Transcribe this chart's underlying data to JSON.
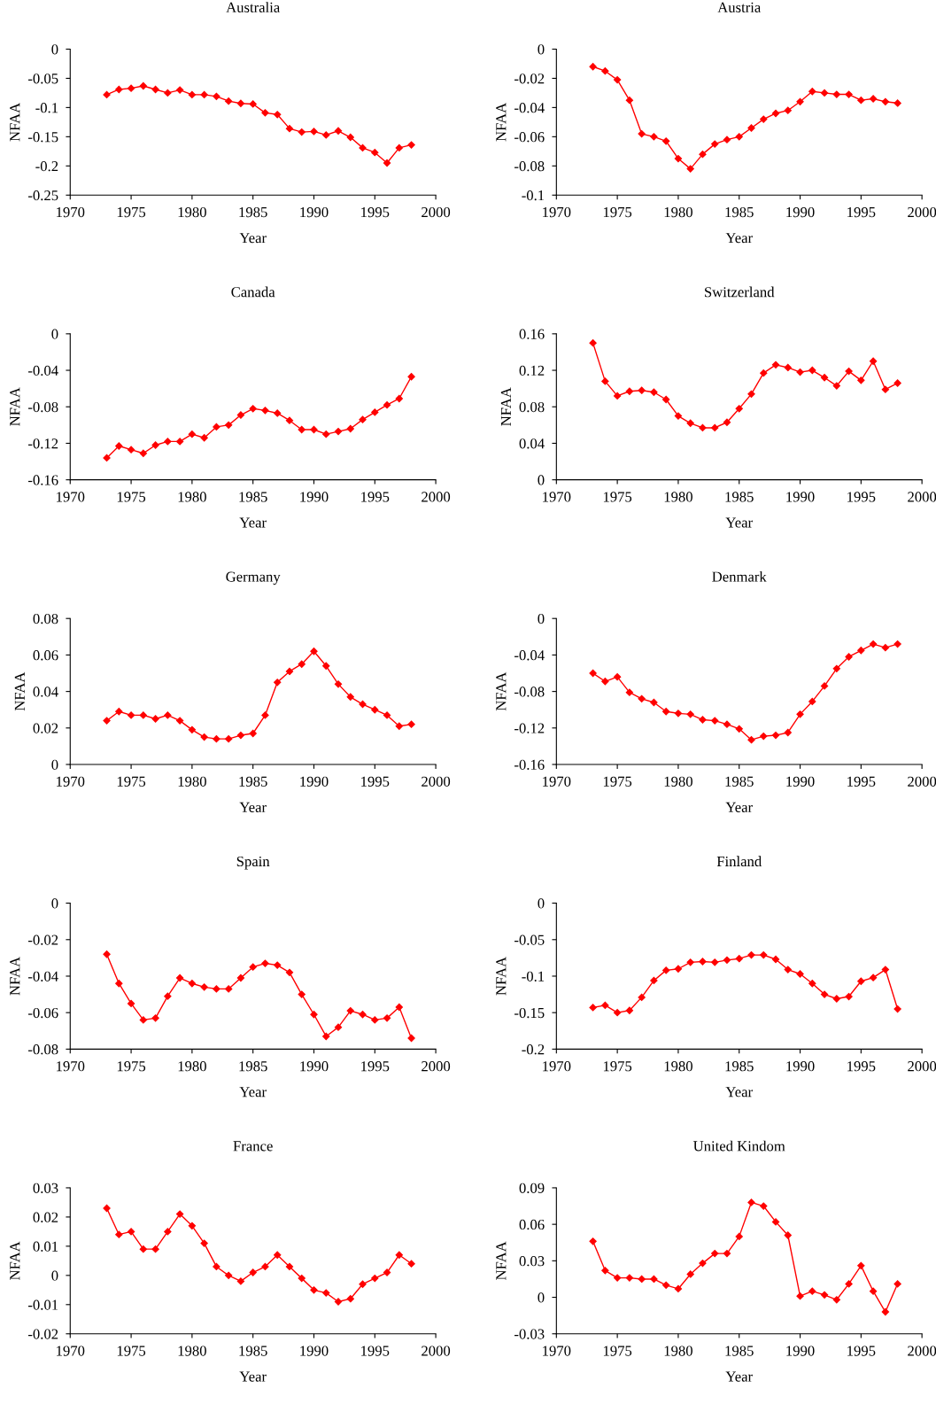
{
  "chart_data": [
    {
      "type": "line",
      "title": "Australia",
      "xlabel": "Year",
      "ylabel": "NFAA",
      "x": [
        1973,
        1974,
        1975,
        1976,
        1977,
        1978,
        1979,
        1980,
        1981,
        1982,
        1983,
        1984,
        1985,
        1986,
        1987,
        1988,
        1989,
        1990,
        1991,
        1992,
        1993,
        1994,
        1995,
        1996,
        1997,
        1998
      ],
      "series": [
        {
          "color": "#ff0000",
          "values": [
            -0.078,
            -0.069,
            -0.067,
            -0.063,
            -0.069,
            -0.075,
            -0.07,
            -0.078,
            -0.078,
            -0.081,
            -0.089,
            -0.093,
            -0.094,
            -0.109,
            -0.112,
            -0.136,
            -0.142,
            -0.141,
            -0.147,
            -0.14,
            -0.151,
            -0.169,
            -0.177,
            -0.195,
            -0.169,
            -0.164
          ]
        }
      ],
      "xlim": [
        1970,
        2000
      ],
      "xticks": [
        1970,
        1975,
        1980,
        1985,
        1990,
        1995,
        2000
      ],
      "ylim": [
        -0.25,
        0
      ],
      "yticks": [
        -0.25,
        -0.2,
        -0.15,
        -0.1,
        -0.05,
        0
      ],
      "marker": "diamond",
      "line_style": "solid"
    },
    {
      "type": "line",
      "title": "Austria",
      "xlabel": "Year",
      "ylabel": "NFAA",
      "x": [
        1973,
        1974,
        1975,
        1976,
        1977,
        1978,
        1979,
        1980,
        1981,
        1982,
        1983,
        1984,
        1985,
        1986,
        1987,
        1988,
        1989,
        1990,
        1991,
        1992,
        1993,
        1994,
        1995,
        1996,
        1997,
        1998
      ],
      "series": [
        {
          "color": "#ff0000",
          "values": [
            -0.012,
            -0.015,
            -0.021,
            -0.035,
            -0.058,
            -0.06,
            -0.063,
            -0.075,
            -0.082,
            -0.072,
            -0.065,
            -0.062,
            -0.06,
            -0.054,
            -0.048,
            -0.044,
            -0.042,
            -0.036,
            -0.029,
            -0.03,
            -0.031,
            -0.031,
            -0.035,
            -0.034,
            -0.036,
            -0.037
          ]
        }
      ],
      "xlim": [
        1970,
        2000
      ],
      "xticks": [
        1970,
        1975,
        1980,
        1985,
        1990,
        1995,
        2000
      ],
      "ylim": [
        -0.1,
        0
      ],
      "yticks": [
        -0.1,
        -0.08,
        -0.06,
        -0.04,
        -0.02,
        0
      ],
      "marker": "diamond",
      "line_style": "solid"
    },
    {
      "type": "line",
      "title": "Canada",
      "xlabel": "Year",
      "ylabel": "NFAA",
      "x": [
        1973,
        1974,
        1975,
        1976,
        1977,
        1978,
        1979,
        1980,
        1981,
        1982,
        1983,
        1984,
        1985,
        1986,
        1987,
        1988,
        1989,
        1990,
        1991,
        1992,
        1993,
        1994,
        1995,
        1996,
        1997,
        1998
      ],
      "series": [
        {
          "color": "#ff0000",
          "values": [
            -0.136,
            -0.123,
            -0.127,
            -0.131,
            -0.122,
            -0.118,
            -0.118,
            -0.11,
            -0.114,
            -0.102,
            -0.1,
            -0.089,
            -0.082,
            -0.084,
            -0.087,
            -0.095,
            -0.105,
            -0.105,
            -0.11,
            -0.107,
            -0.104,
            -0.094,
            -0.086,
            -0.078,
            -0.071,
            -0.047
          ]
        }
      ],
      "xlim": [
        1970,
        2000
      ],
      "xticks": [
        1970,
        1975,
        1980,
        1985,
        1990,
        1995,
        2000
      ],
      "ylim": [
        -0.16,
        0
      ],
      "yticks": [
        -0.16,
        -0.12,
        -0.08,
        -0.04,
        0
      ],
      "marker": "diamond",
      "line_style": "solid"
    },
    {
      "type": "line",
      "title": "Switzerland",
      "xlabel": "Year",
      "ylabel": "NFAA",
      "x": [
        1973,
        1974,
        1975,
        1976,
        1977,
        1978,
        1979,
        1980,
        1981,
        1982,
        1983,
        1984,
        1985,
        1986,
        1987,
        1988,
        1989,
        1990,
        1991,
        1992,
        1993,
        1994,
        1995,
        1996,
        1997,
        1998
      ],
      "series": [
        {
          "color": "#ff0000",
          "values": [
            0.15,
            0.108,
            0.092,
            0.097,
            0.098,
            0.096,
            0.088,
            0.07,
            0.062,
            0.057,
            0.057,
            0.063,
            0.078,
            0.094,
            0.117,
            0.126,
            0.123,
            0.118,
            0.12,
            0.112,
            0.103,
            0.119,
            0.109,
            0.13,
            0.099,
            0.106
          ]
        }
      ],
      "xlim": [
        1970,
        2000
      ],
      "xticks": [
        1970,
        1975,
        1980,
        1985,
        1990,
        1995,
        2000
      ],
      "ylim": [
        0,
        0.16
      ],
      "yticks": [
        0,
        0.04,
        0.08,
        0.12,
        0.16
      ],
      "marker": "diamond",
      "line_style": "solid"
    },
    {
      "type": "line",
      "title": "Germany",
      "xlabel": "Year",
      "ylabel": "NFAA",
      "x": [
        1973,
        1974,
        1975,
        1976,
        1977,
        1978,
        1979,
        1980,
        1981,
        1982,
        1983,
        1984,
        1985,
        1986,
        1987,
        1988,
        1989,
        1990,
        1991,
        1992,
        1993,
        1994,
        1995,
        1996,
        1997,
        1998
      ],
      "series": [
        {
          "color": "#ff0000",
          "values": [
            0.024,
            0.029,
            0.027,
            0.027,
            0.025,
            0.027,
            0.024,
            0.019,
            0.015,
            0.014,
            0.014,
            0.016,
            0.017,
            0.027,
            0.045,
            0.051,
            0.055,
            0.062,
            0.054,
            0.044,
            0.037,
            0.033,
            0.03,
            0.027,
            0.021,
            0.022
          ]
        }
      ],
      "xlim": [
        1970,
        2000
      ],
      "xticks": [
        1970,
        1975,
        1980,
        1985,
        1990,
        1995,
        2000
      ],
      "ylim": [
        0,
        0.08
      ],
      "yticks": [
        0,
        0.02,
        0.04,
        0.06,
        0.08
      ],
      "marker": "diamond",
      "line_style": "solid"
    },
    {
      "type": "line",
      "title": "Denmark",
      "xlabel": "Year",
      "ylabel": "NFAA",
      "x": [
        1973,
        1974,
        1975,
        1976,
        1977,
        1978,
        1979,
        1980,
        1981,
        1982,
        1983,
        1984,
        1985,
        1986,
        1987,
        1988,
        1989,
        1990,
        1991,
        1992,
        1993,
        1994,
        1995,
        1996,
        1997,
        1998
      ],
      "series": [
        {
          "color": "#ff0000",
          "values": [
            -0.06,
            -0.069,
            -0.064,
            -0.081,
            -0.088,
            -0.092,
            -0.102,
            -0.104,
            -0.105,
            -0.111,
            -0.112,
            -0.116,
            -0.121,
            -0.133,
            -0.129,
            -0.128,
            -0.125,
            -0.105,
            -0.091,
            -0.074,
            -0.055,
            -0.042,
            -0.035,
            -0.028,
            -0.032,
            -0.028
          ]
        }
      ],
      "xlim": [
        1970,
        2000
      ],
      "xticks": [
        1970,
        1975,
        1980,
        1985,
        1990,
        1995,
        2000
      ],
      "ylim": [
        -0.16,
        0
      ],
      "yticks": [
        -0.16,
        -0.12,
        -0.08,
        -0.04,
        0
      ],
      "marker": "diamond",
      "line_style": "solid"
    },
    {
      "type": "line",
      "title": "Spain",
      "xlabel": "Year",
      "ylabel": "NFAA",
      "x": [
        1973,
        1974,
        1975,
        1976,
        1977,
        1978,
        1979,
        1980,
        1981,
        1982,
        1983,
        1984,
        1985,
        1986,
        1987,
        1988,
        1989,
        1990,
        1991,
        1992,
        1993,
        1994,
        1995,
        1996,
        1997,
        1998
      ],
      "series": [
        {
          "color": "#ff0000",
          "values": [
            -0.028,
            -0.044,
            -0.055,
            -0.064,
            -0.063,
            -0.051,
            -0.041,
            -0.044,
            -0.046,
            -0.047,
            -0.047,
            -0.041,
            -0.035,
            -0.033,
            -0.034,
            -0.038,
            -0.05,
            -0.061,
            -0.073,
            -0.068,
            -0.059,
            -0.061,
            -0.064,
            -0.063,
            -0.057,
            -0.074
          ]
        }
      ],
      "xlim": [
        1970,
        2000
      ],
      "xticks": [
        1970,
        1975,
        1980,
        1985,
        1990,
        1995,
        2000
      ],
      "ylim": [
        -0.08,
        0
      ],
      "yticks": [
        -0.08,
        -0.06,
        -0.04,
        -0.02,
        0
      ],
      "marker": "diamond",
      "line_style": "solid"
    },
    {
      "type": "line",
      "title": "Finland",
      "xlabel": "Year",
      "ylabel": "NFAA",
      "x": [
        1973,
        1974,
        1975,
        1976,
        1977,
        1978,
        1979,
        1980,
        1981,
        1982,
        1983,
        1984,
        1985,
        1986,
        1987,
        1988,
        1989,
        1990,
        1991,
        1992,
        1993,
        1994,
        1995,
        1996,
        1997,
        1998
      ],
      "series": [
        {
          "color": "#ff0000",
          "values": [
            -0.143,
            -0.14,
            -0.15,
            -0.147,
            -0.129,
            -0.106,
            -0.092,
            -0.09,
            -0.081,
            -0.08,
            -0.081,
            -0.078,
            -0.076,
            -0.071,
            -0.071,
            -0.077,
            -0.091,
            -0.097,
            -0.11,
            -0.125,
            -0.131,
            -0.128,
            -0.107,
            -0.102,
            -0.091,
            -0.145
          ]
        }
      ],
      "xlim": [
        1970,
        2000
      ],
      "xticks": [
        1970,
        1975,
        1980,
        1985,
        1990,
        1995,
        2000
      ],
      "ylim": [
        -0.2,
        0
      ],
      "yticks": [
        -0.2,
        -0.15,
        -0.1,
        -0.05,
        0
      ],
      "marker": "diamond",
      "line_style": "solid"
    },
    {
      "type": "line",
      "title": "France",
      "xlabel": "Year",
      "ylabel": "NFAA",
      "x": [
        1973,
        1974,
        1975,
        1976,
        1977,
        1978,
        1979,
        1980,
        1981,
        1982,
        1983,
        1984,
        1985,
        1986,
        1987,
        1988,
        1989,
        1990,
        1991,
        1992,
        1993,
        1994,
        1995,
        1996,
        1997,
        1998
      ],
      "series": [
        {
          "color": "#ff0000",
          "values": [
            0.023,
            0.014,
            0.015,
            0.009,
            0.009,
            0.015,
            0.021,
            0.017,
            0.011,
            0.003,
            0.0,
            -0.002,
            0.001,
            0.003,
            0.007,
            0.003,
            -0.001,
            -0.005,
            -0.006,
            -0.009,
            -0.008,
            -0.003,
            -0.001,
            0.001,
            0.007,
            0.004
          ]
        }
      ],
      "xlim": [
        1970,
        2000
      ],
      "xticks": [
        1970,
        1975,
        1980,
        1985,
        1990,
        1995,
        2000
      ],
      "ylim": [
        -0.02,
        0.03
      ],
      "yticks": [
        -0.02,
        -0.01,
        0,
        0.01,
        0.02,
        0.03
      ],
      "marker": "diamond",
      "line_style": "solid"
    },
    {
      "type": "line",
      "title": "United Kindom",
      "xlabel": "Year",
      "ylabel": "NFAA",
      "x": [
        1973,
        1974,
        1975,
        1976,
        1977,
        1978,
        1979,
        1980,
        1981,
        1982,
        1983,
        1984,
        1985,
        1986,
        1987,
        1988,
        1989,
        1990,
        1991,
        1992,
        1993,
        1994,
        1995,
        1996,
        1997,
        1998
      ],
      "series": [
        {
          "color": "#ff0000",
          "values": [
            0.046,
            0.022,
            0.016,
            0.016,
            0.015,
            0.015,
            0.01,
            0.007,
            0.019,
            0.028,
            0.036,
            0.036,
            0.05,
            0.078,
            0.075,
            0.062,
            0.051,
            0.001,
            0.005,
            0.002,
            -0.002,
            0.011,
            0.026,
            0.005,
            -0.012,
            0.011
          ]
        }
      ],
      "xlim": [
        1970,
        2000
      ],
      "xticks": [
        1970,
        1975,
        1980,
        1985,
        1990,
        1995,
        2000
      ],
      "ylim": [
        -0.03,
        0.09
      ],
      "yticks": [
        -0.03,
        0,
        0.03,
        0.06,
        0.09
      ],
      "marker": "diamond",
      "line_style": "solid"
    }
  ]
}
